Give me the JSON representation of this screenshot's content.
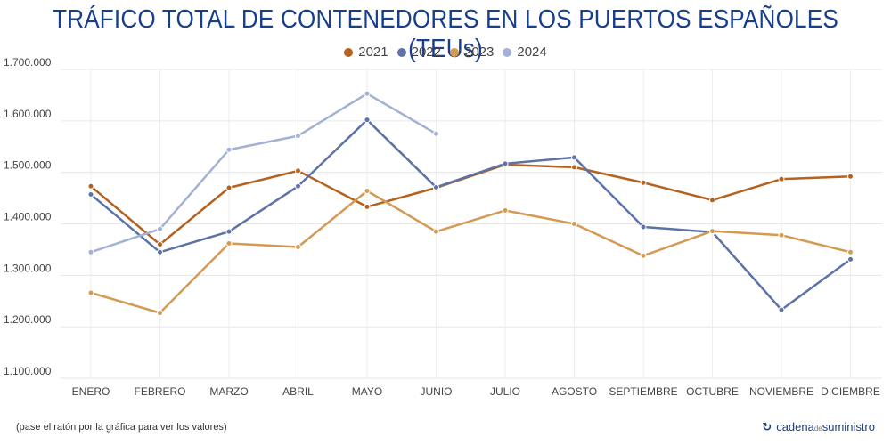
{
  "chart_data": {
    "type": "line",
    "title": "TRÁFICO TOTAL DE CONTENEDORES EN LOS PUERTOS ESPAÑOLES (TEUs)",
    "xlabel": "",
    "ylabel": "",
    "categories": [
      "ENERO",
      "FEBRERO",
      "MARZO",
      "ABRIL",
      "MAYO",
      "JUNIO",
      "JULIO",
      "AGOSTO",
      "SEPTIEMBRE",
      "OCTUBRE",
      "NOVIEMBRE",
      "DICIEMBRE"
    ],
    "ylim": [
      1100000,
      1700000
    ],
    "yticks": [
      1100000,
      1200000,
      1300000,
      1400000,
      1500000,
      1600000,
      1700000
    ],
    "ytick_labels": [
      "1.100.000",
      "1.200.000",
      "1.300.000",
      "1.400.000",
      "1.500.000",
      "1.600.000",
      "1.700.000"
    ],
    "legend_position": "top-center",
    "grid": true,
    "series": [
      {
        "name": "2021",
        "color": "#b4621e",
        "values": [
          1473000,
          1360000,
          1470000,
          1503000,
          1433000,
          1470000,
          1515000,
          1510000,
          1480000,
          1446000,
          1487000,
          1492000
        ]
      },
      {
        "name": "2022",
        "color": "#5d72a6",
        "values": [
          1457000,
          1345000,
          1385000,
          1473000,
          1602000,
          1471000,
          1517000,
          1529000,
          1394000,
          1384000,
          1233000,
          1331000
        ]
      },
      {
        "name": "2023",
        "color": "#d49a52",
        "values": [
          1266000,
          1227000,
          1362000,
          1355000,
          1464000,
          1385000,
          1426000,
          1400000,
          1338000,
          1386000,
          1378000,
          1345000
        ]
      },
      {
        "name": "2024",
        "color": "#a3b1d3",
        "values": [
          1345000,
          1390000,
          1544000,
          1571000,
          1653000,
          1575000,
          null,
          null,
          null,
          null,
          null,
          null
        ]
      }
    ]
  },
  "footer": {
    "note": "(pase el ratón por la gráfica para ver los valores)",
    "brand_main": "cadena",
    "brand_small": "de",
    "brand_end": "suministro",
    "brand_icon": "↻"
  }
}
